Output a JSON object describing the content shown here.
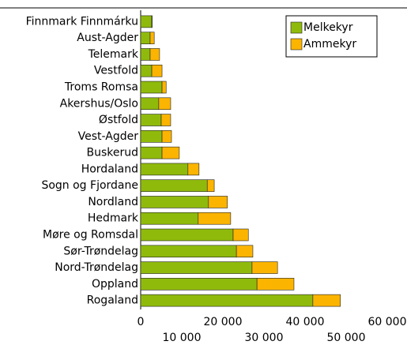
{
  "chart_data": {
    "type": "bar",
    "orientation": "horizontal",
    "stacked": true,
    "categories": [
      "Finnmark Finnmárku",
      "Aust-Agder",
      "Telemark",
      "Vestfold",
      "Troms Romsa",
      "Akershus/Oslo",
      "Østfold",
      "Vest-Agder",
      "Buskerud",
      "Hordaland",
      "Sogn og Fjordane",
      "Nordland",
      "Hedmark",
      "Møre og Romsdal",
      "Sør-Trøndelag",
      "Nord-Trøndelag",
      "Oppland",
      "Rogaland"
    ],
    "series": [
      {
        "name": "Melkekyr",
        "color": "#8fba0c",
        "values": [
          2700,
          2300,
          2300,
          2700,
          5200,
          4400,
          5000,
          5200,
          5200,
          11500,
          16200,
          16500,
          14000,
          22500,
          23300,
          27100,
          28300,
          41900
        ]
      },
      {
        "name": "Ammekyr",
        "color": "#fbb400",
        "values": [
          100,
          1000,
          2300,
          2500,
          1000,
          2900,
          2300,
          2300,
          4200,
          2700,
          1700,
          4600,
          7900,
          3700,
          4000,
          6200,
          9000,
          6700
        ]
      }
    ],
    "xlim": [
      0,
      60000
    ],
    "xticks": [
      0,
      {
        "value": 10000,
        "label": "10 000"
      },
      {
        "value": 20000,
        "label": "20 000"
      },
      {
        "value": 30000,
        "label": "30 000"
      },
      {
        "value": 40000,
        "label": "40 000"
      },
      {
        "value": 50000,
        "label": "50 000"
      },
      {
        "value": 60000,
        "label": "60 000"
      }
    ],
    "legend": "top-right"
  }
}
